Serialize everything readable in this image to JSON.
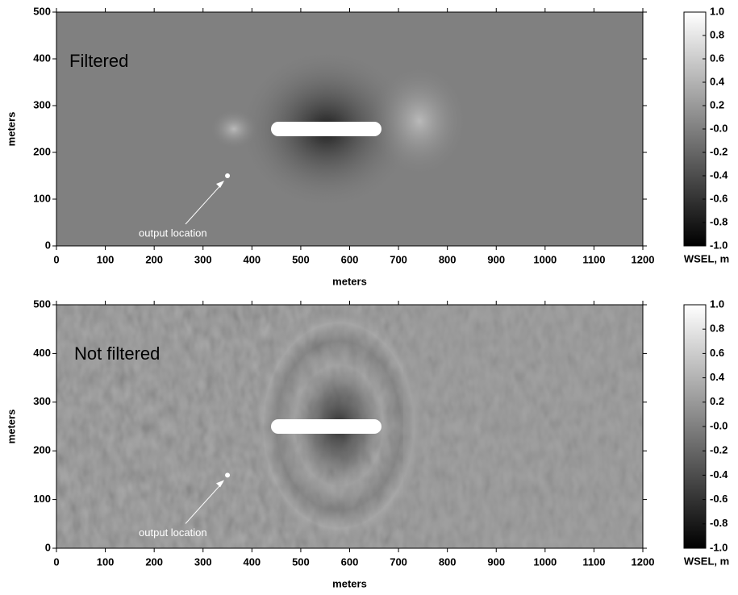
{
  "chart_data": [
    {
      "type": "heatmap",
      "label": "Filtered",
      "xlabel": "meters",
      "ylabel": "meters",
      "xlim": [
        0,
        1200
      ],
      "ylim": [
        0,
        500
      ],
      "xticks": [
        0,
        100,
        200,
        300,
        400,
        500,
        600,
        700,
        800,
        900,
        1000,
        1100,
        1200
      ],
      "yticks": [
        0,
        100,
        200,
        300,
        400,
        500
      ],
      "colorbar_label": "WSEL, m",
      "clim": [
        -1,
        1
      ],
      "colorbar_ticks": [
        {
          "value": 1,
          "label": "1.0"
        },
        {
          "value": 0.8,
          "label": "0.8"
        },
        {
          "value": 0.6,
          "label": "0.6"
        },
        {
          "value": 0.4,
          "label": "0.4"
        },
        {
          "value": 0.2,
          "label": "0.2"
        },
        {
          "value": 0,
          "label": "-0.0"
        },
        {
          "value": -0.2,
          "label": "-0.2"
        },
        {
          "value": -0.4,
          "label": "-0.4"
        },
        {
          "value": -0.6,
          "label": "-0.6"
        },
        {
          "value": -0.8,
          "label": "-0.8"
        },
        {
          "value": -1,
          "label": "-1.0"
        }
      ],
      "annotation": {
        "text": "output location",
        "x": 350,
        "y": 150
      }
    },
    {
      "type": "heatmap",
      "label": "Not filtered",
      "xlabel": "meters",
      "ylabel": "meters",
      "xlim": [
        0,
        1200
      ],
      "ylim": [
        0,
        500
      ],
      "xticks": [
        0,
        100,
        200,
        300,
        400,
        500,
        600,
        700,
        800,
        900,
        1000,
        1100,
        1200
      ],
      "yticks": [
        0,
        100,
        200,
        300,
        400,
        500
      ],
      "colorbar_label": "WSEL, m",
      "clim": [
        -1,
        1
      ],
      "colorbar_ticks": [
        {
          "value": 1,
          "label": "1.0"
        },
        {
          "value": 0.8,
          "label": "0.8"
        },
        {
          "value": 0.6,
          "label": "0.6"
        },
        {
          "value": 0.4,
          "label": "0.4"
        },
        {
          "value": 0.2,
          "label": "0.2"
        },
        {
          "value": 0,
          "label": "-0.0"
        },
        {
          "value": -0.2,
          "label": "-0.2"
        },
        {
          "value": -0.4,
          "label": "-0.4"
        },
        {
          "value": -0.6,
          "label": "-0.6"
        },
        {
          "value": -0.8,
          "label": "-0.8"
        },
        {
          "value": -1,
          "label": "-1.0"
        }
      ],
      "annotation": {
        "text": "output location",
        "x": 350,
        "y": 150
      }
    }
  ]
}
